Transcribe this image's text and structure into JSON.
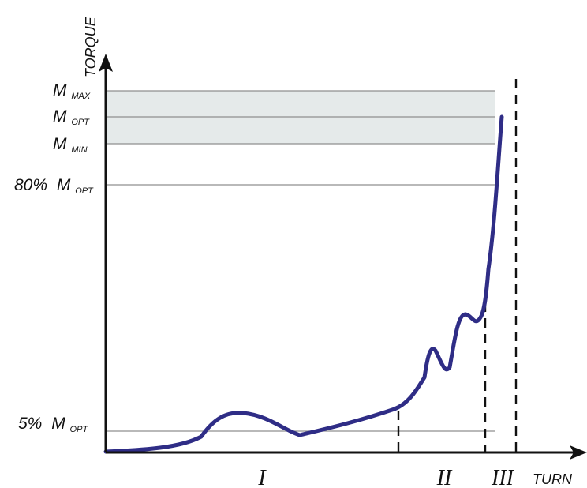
{
  "axis": {
    "y_label": "TORQUE",
    "x_label": "TURN"
  },
  "levels": {
    "max": {
      "main": "M",
      "sub": "MAX"
    },
    "opt": {
      "main": "M",
      "sub": "OPT"
    },
    "min": {
      "main": "M",
      "sub": "MIN"
    },
    "eighty": {
      "prefix": "80%",
      "main": "M",
      "sub": "OPT"
    },
    "five": {
      "prefix": "5%",
      "main": "M",
      "sub": "OPT"
    }
  },
  "phases": [
    {
      "label": "I"
    },
    {
      "label": "II"
    },
    {
      "label": "III"
    }
  ],
  "colors": {
    "curve": "#2f2d86",
    "band": "#e5eaea",
    "axis": "#111111",
    "reference": "#8f8f8f"
  }
}
